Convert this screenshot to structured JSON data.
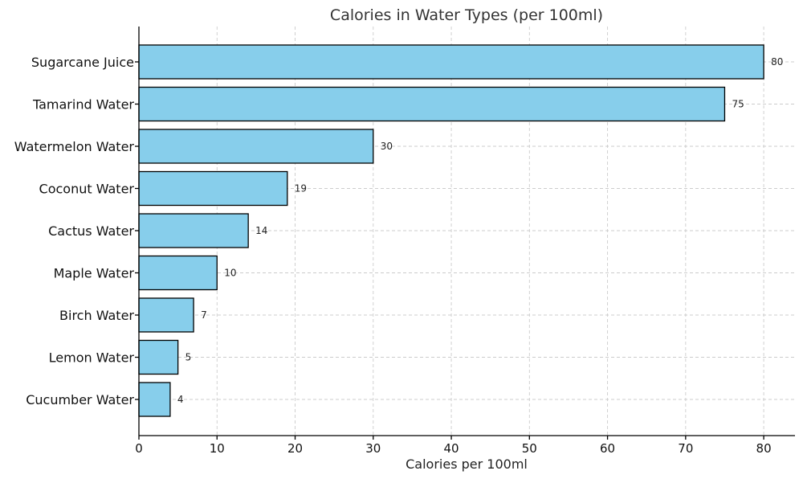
{
  "chart_data": {
    "type": "bar",
    "orientation": "horizontal",
    "title": "Calories in Water Types (per 100ml)",
    "xlabel": "Calories per 100ml",
    "ylabel": "",
    "categories": [
      "Sugarcane Juice",
      "Tamarind Water",
      "Watermelon Water",
      "Coconut Water",
      "Cactus Water",
      "Maple Water",
      "Birch Water",
      "Lemon Water",
      "Cucumber Water"
    ],
    "values": [
      80,
      75,
      30,
      19,
      14,
      10,
      7,
      5,
      4
    ],
    "data_labels": [
      "80",
      "75",
      "30",
      "19",
      "14",
      "10",
      "7",
      "5",
      "4"
    ],
    "xlim": [
      0,
      84
    ],
    "xticks": [
      0,
      10,
      20,
      30,
      40,
      50,
      60,
      70,
      80
    ],
    "xtick_labels": [
      "0",
      "10",
      "20",
      "30",
      "40",
      "50",
      "60",
      "70",
      "80"
    ],
    "grid": true,
    "bar_color": "#87ceeb",
    "edge_color": "#000000"
  }
}
